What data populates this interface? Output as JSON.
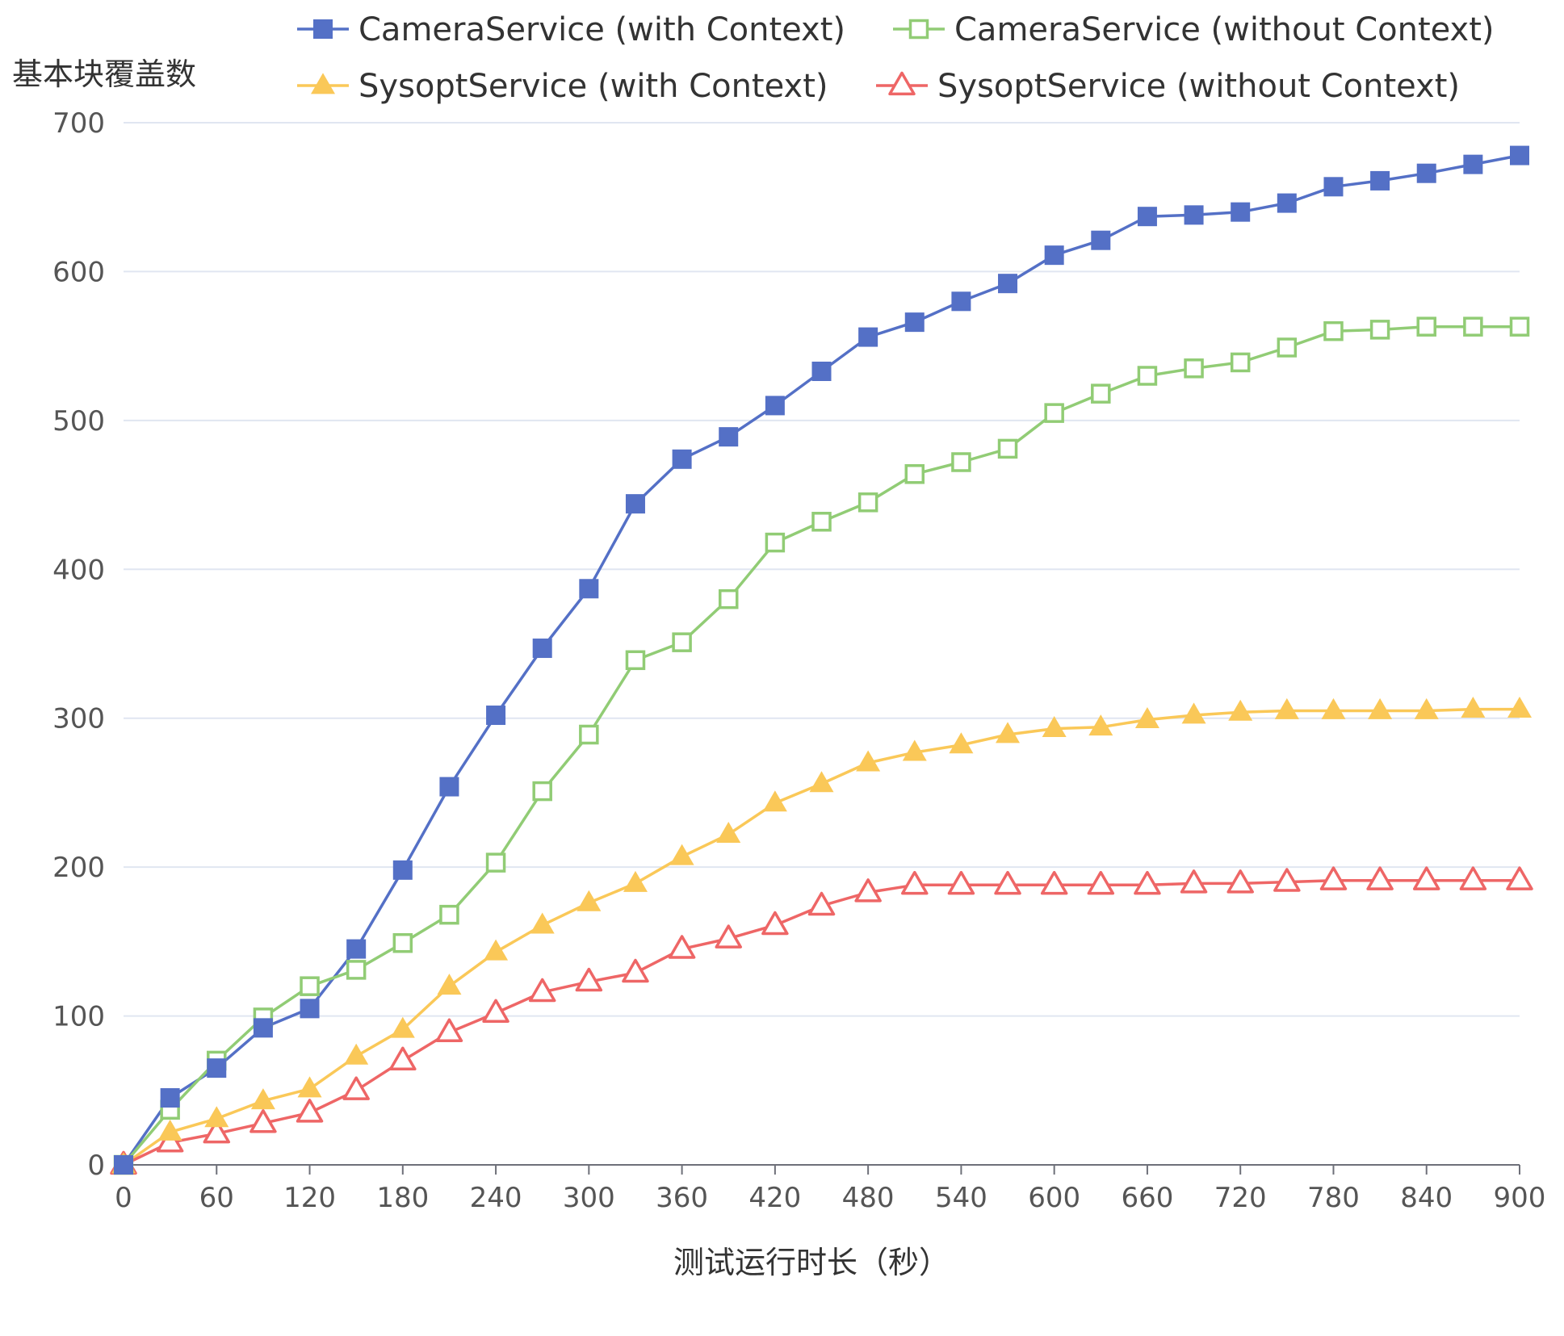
{
  "chart_data": {
    "type": "line",
    "title": "",
    "xlabel": "测试运行时长（秒）",
    "ylabel": "基本块覆盖数",
    "xlim": [
      0,
      900
    ],
    "ylim": [
      0,
      700
    ],
    "x_ticks": [
      0,
      60,
      120,
      180,
      240,
      300,
      360,
      420,
      480,
      540,
      600,
      660,
      720,
      780,
      840,
      900
    ],
    "y_ticks": [
      0,
      100,
      200,
      300,
      400,
      500,
      600,
      700
    ],
    "grid": "horizontal",
    "legend_position": "top",
    "x": [
      0,
      30,
      60,
      90,
      120,
      150,
      180,
      210,
      240,
      270,
      300,
      330,
      360,
      390,
      420,
      450,
      480,
      510,
      540,
      570,
      600,
      630,
      660,
      690,
      720,
      750,
      780,
      810,
      840,
      870,
      900
    ],
    "series": [
      {
        "name": "CameraService (with Context)",
        "color": "#5470c6",
        "marker": "square-filled",
        "values": [
          0,
          45,
          65,
          92,
          105,
          145,
          198,
          254,
          302,
          347,
          387,
          444,
          474,
          489,
          510,
          533,
          556,
          566,
          580,
          592,
          611,
          621,
          637,
          638,
          640,
          646,
          657,
          661,
          666,
          672,
          678
        ]
      },
      {
        "name": "CameraService (without Context)",
        "color": "#91cc75",
        "marker": "square-open",
        "values": [
          0,
          37,
          70,
          99,
          120,
          131,
          149,
          168,
          203,
          251,
          289,
          339,
          351,
          380,
          418,
          432,
          445,
          464,
          472,
          481,
          505,
          518,
          530,
          535,
          539,
          549,
          560,
          561,
          563,
          563,
          563
        ]
      },
      {
        "name": "SysoptService (with Context)",
        "color": "#fac858",
        "marker": "triangle-filled",
        "values": [
          0,
          22,
          31,
          43,
          51,
          73,
          91,
          120,
          143,
          161,
          176,
          189,
          207,
          222,
          243,
          256,
          270,
          277,
          282,
          289,
          293,
          294,
          299,
          302,
          304,
          305,
          305,
          305,
          305,
          306,
          306
        ]
      },
      {
        "name": "SysoptService (without Context)",
        "color": "#ee6666",
        "marker": "triangle-open",
        "values": [
          0,
          15,
          21,
          28,
          35,
          50,
          70,
          89,
          102,
          116,
          123,
          129,
          145,
          152,
          161,
          174,
          183,
          188,
          188,
          188,
          188,
          188,
          188,
          189,
          189,
          190,
          191,
          191,
          191,
          191,
          191
        ]
      }
    ]
  }
}
